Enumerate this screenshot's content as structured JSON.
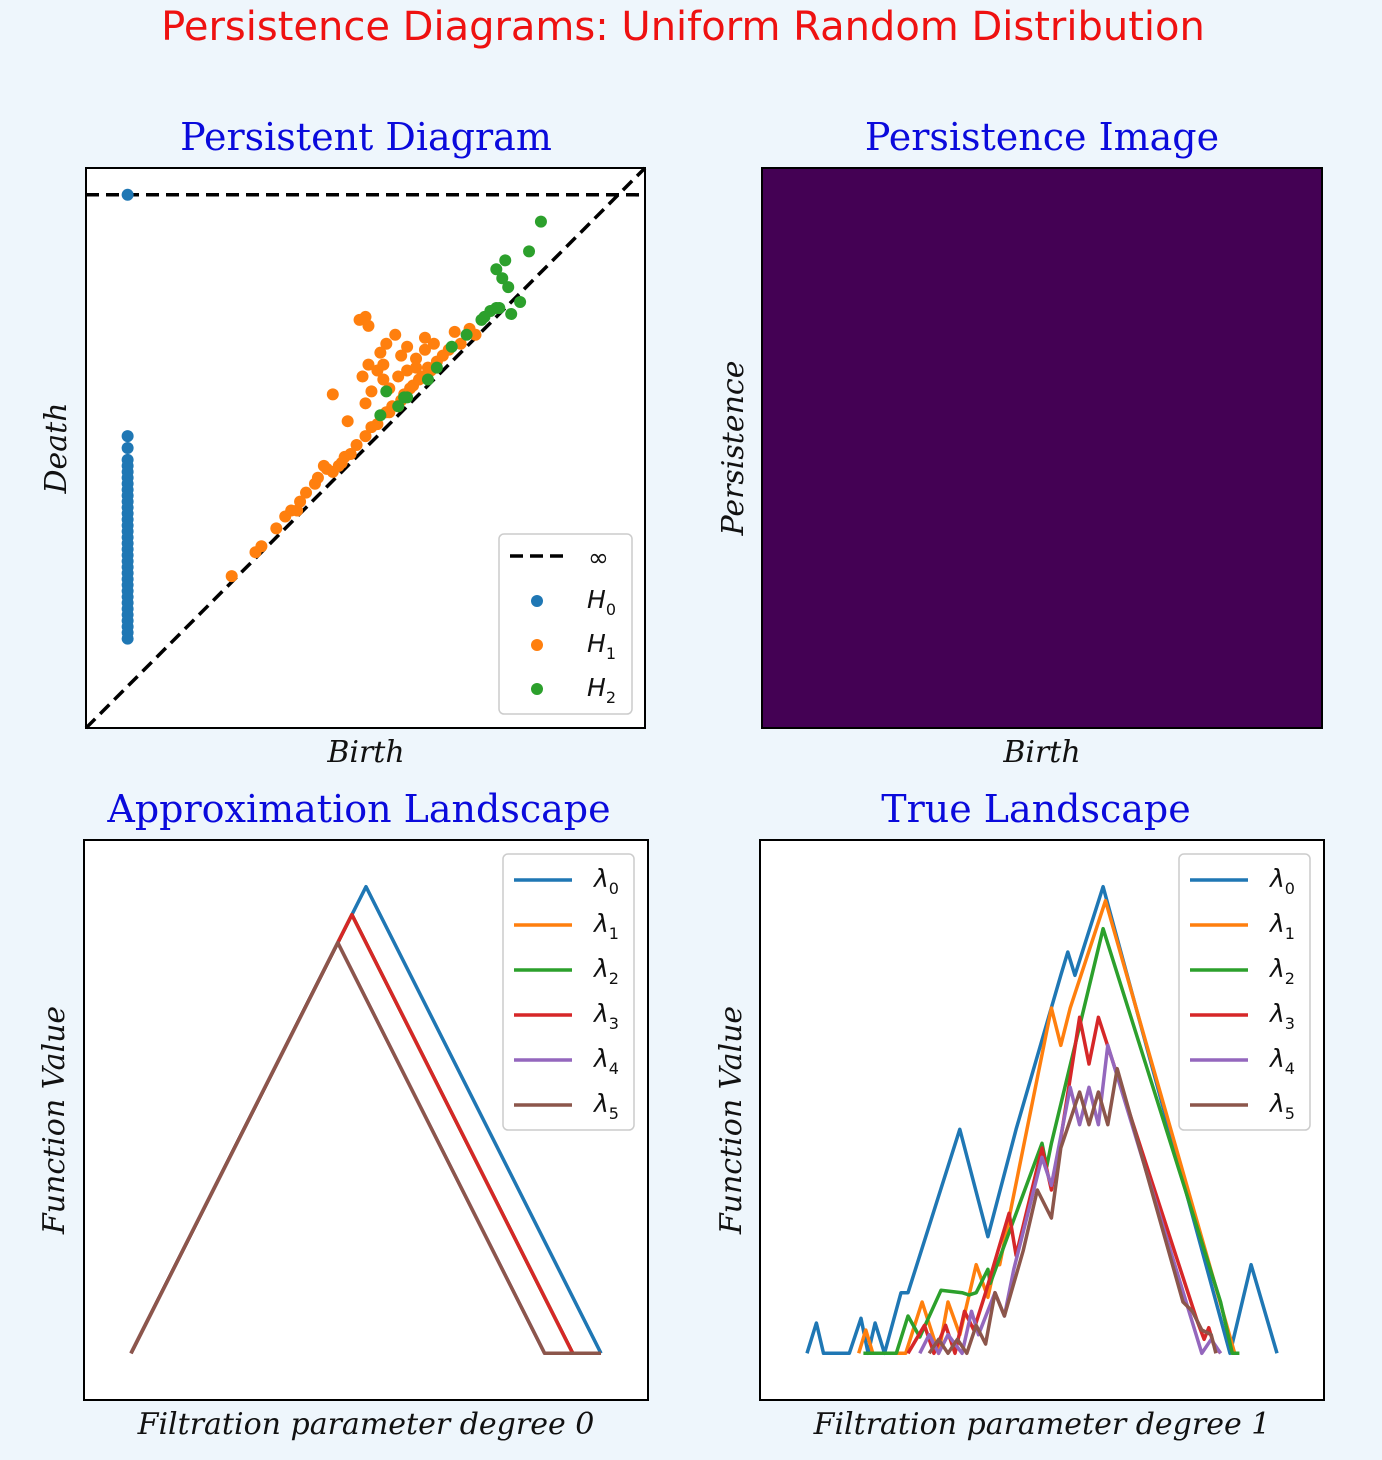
{
  "suptitle": "Persistence Diagrams:  Uniform Random Distribution",
  "chart_data": [
    {
      "type": "scatter",
      "title": "Persistent Diagram",
      "xlabel": "Birth",
      "ylabel": "Death",
      "xlim": [
        -0.08,
        1.8
      ],
      "ylim": [
        -0.08,
        1.8
      ],
      "infinity_line": {
        "label": "∞",
        "y": 1.71,
        "color": "#000000",
        "style": "dashed"
      },
      "diagonal": {
        "color": "#000000",
        "style": "dashed"
      },
      "legend_position": "lower-right",
      "series": [
        {
          "name": "H",
          "subscript": "0",
          "color": "#1f77b4",
          "points": [
            [
              0.06,
              1.71
            ],
            [
              0.06,
              0.9
            ],
            [
              0.06,
              0.86
            ],
            [
              0.06,
              0.82
            ],
            [
              0.06,
              0.8
            ],
            [
              0.06,
              0.78
            ],
            [
              0.06,
              0.76
            ],
            [
              0.06,
              0.74
            ],
            [
              0.06,
              0.72
            ],
            [
              0.06,
              0.7
            ],
            [
              0.06,
              0.68
            ],
            [
              0.06,
              0.66
            ],
            [
              0.06,
              0.64
            ],
            [
              0.06,
              0.62
            ],
            [
              0.06,
              0.6
            ],
            [
              0.06,
              0.58
            ],
            [
              0.06,
              0.56
            ],
            [
              0.06,
              0.54
            ],
            [
              0.06,
              0.52
            ],
            [
              0.06,
              0.5
            ],
            [
              0.06,
              0.48
            ],
            [
              0.06,
              0.46
            ],
            [
              0.06,
              0.44
            ],
            [
              0.06,
              0.42
            ],
            [
              0.06,
              0.4
            ],
            [
              0.06,
              0.38
            ],
            [
              0.06,
              0.36
            ],
            [
              0.06,
              0.34
            ],
            [
              0.06,
              0.32
            ],
            [
              0.06,
              0.3
            ],
            [
              0.06,
              0.28
            ],
            [
              0.06,
              0.26
            ],
            [
              0.06,
              0.24
            ],
            [
              0.06,
              0.22
            ]
          ]
        },
        {
          "name": "H",
          "subscript": "1",
          "color": "#ff7f0e",
          "points": [
            [
              0.41,
              0.43
            ],
            [
              0.49,
              0.51
            ],
            [
              0.51,
              0.53
            ],
            [
              0.56,
              0.59
            ],
            [
              0.59,
              0.63
            ],
            [
              0.61,
              0.65
            ],
            [
              0.63,
              0.65
            ],
            [
              0.64,
              0.68
            ],
            [
              0.66,
              0.71
            ],
            [
              0.69,
              0.74
            ],
            [
              0.72,
              0.8
            ],
            [
              0.7,
              0.76
            ],
            [
              0.73,
              0.79
            ],
            [
              0.75,
              0.78
            ],
            [
              0.77,
              0.8
            ],
            [
              0.79,
              0.83
            ],
            [
              0.81,
              0.84
            ],
            [
              0.78,
              0.81
            ],
            [
              0.83,
              0.87
            ],
            [
              0.86,
              0.9
            ],
            [
              0.88,
              0.93
            ],
            [
              0.9,
              0.94
            ],
            [
              0.93,
              0.98
            ],
            [
              0.95,
              1.0
            ],
            [
              0.97,
              1.0
            ],
            [
              0.99,
              1.04
            ],
            [
              1.02,
              1.07
            ],
            [
              1.04,
              1.09
            ],
            [
              1.07,
              1.13
            ],
            [
              1.1,
              1.15
            ],
            [
              1.14,
              1.19
            ],
            [
              1.18,
              1.21
            ],
            [
              0.86,
              1.01
            ],
            [
              0.88,
              1.05
            ],
            [
              0.85,
              1.1
            ],
            [
              0.87,
              1.14
            ],
            [
              0.91,
              1.18
            ],
            [
              0.93,
              1.21
            ],
            [
              0.96,
              1.24
            ],
            [
              1.0,
              1.2
            ],
            [
              1.03,
              1.16
            ],
            [
              1.06,
              1.19
            ],
            [
              1.09,
              1.21
            ],
            [
              0.84,
              1.29
            ],
            [
              0.86,
              1.3
            ],
            [
              0.87,
              1.27
            ],
            [
              0.9,
              1.12
            ],
            [
              0.92,
              1.09
            ],
            [
              0.94,
              1.06
            ],
            [
              0.97,
              1.1
            ],
            [
              1.0,
              1.12
            ],
            [
              1.03,
              1.13
            ],
            [
              1.06,
              1.23
            ],
            [
              0.94,
              0.98
            ],
            [
              0.98,
              1.02
            ],
            [
              1.01,
              1.06
            ],
            [
              1.05,
              1.1
            ],
            [
              1.08,
              1.12
            ],
            [
              1.12,
              1.17
            ],
            [
              0.8,
              0.95
            ],
            [
              1.21,
              1.26
            ],
            [
              1.23,
              1.24
            ],
            [
              1.16,
              1.25
            ],
            [
              0.75,
              1.04
            ],
            [
              0.98,
              1.17
            ],
            [
              0.92,
              1.14
            ]
          ]
        },
        {
          "name": "H",
          "subscript": "2",
          "color": "#2ca02c",
          "points": [
            [
              1.45,
              1.62
            ],
            [
              1.41,
              1.52
            ],
            [
              1.33,
              1.49
            ],
            [
              1.3,
              1.46
            ],
            [
              1.32,
              1.43
            ],
            [
              1.34,
              1.4
            ],
            [
              1.3,
              1.33
            ],
            [
              1.28,
              1.32
            ],
            [
              1.25,
              1.29
            ],
            [
              1.2,
              1.24
            ],
            [
              1.15,
              1.2
            ],
            [
              1.26,
              1.3
            ],
            [
              1.31,
              1.33
            ],
            [
              1.35,
              1.31
            ],
            [
              1.38,
              1.35
            ],
            [
              1.1,
              1.13
            ],
            [
              0.99,
              1.03
            ],
            [
              0.93,
              1.05
            ],
            [
              0.91,
              0.97
            ],
            [
              0.97,
              1.0
            ],
            [
              1.07,
              1.09
            ],
            [
              1.0,
              1.03
            ]
          ]
        }
      ]
    },
    {
      "type": "heatmap",
      "title": "Persistence Image",
      "xlabel": "Birth",
      "ylabel": "Persistence",
      "fill_color": "#440154"
    },
    {
      "type": "line",
      "title": "Approximation Landscape",
      "xlabel": "Filtration parameter degree  0",
      "ylabel": "Function Value",
      "xlim": [
        -0.1,
        1.1
      ],
      "ylim": [
        -0.1,
        1.1
      ],
      "series": [
        {
          "name": "λ",
          "subscript": "0",
          "color": "#1f77b4",
          "x": [
            0,
            0.5,
            1.0
          ],
          "y": [
            0,
            1.0,
            0
          ]
        },
        {
          "name": "λ",
          "subscript": "1",
          "color": "#ff7f0e",
          "x": [
            0,
            0.47,
            0.94,
            1.0
          ],
          "y": [
            0,
            0.94,
            0,
            0
          ]
        },
        {
          "name": "λ",
          "subscript": "2",
          "color": "#2ca02c",
          "x": [
            0,
            0.47,
            0.94,
            1.0
          ],
          "y": [
            0,
            0.94,
            0,
            0
          ]
        },
        {
          "name": "λ",
          "subscript": "3",
          "color": "#d62728",
          "x": [
            0,
            0.47,
            0.94,
            1.0
          ],
          "y": [
            0,
            0.94,
            0,
            0
          ]
        },
        {
          "name": "λ",
          "subscript": "4",
          "color": "#9467bd",
          "x": [
            0,
            0.44,
            0.88,
            1.0
          ],
          "y": [
            0,
            0.88,
            0,
            0
          ]
        },
        {
          "name": "λ",
          "subscript": "5",
          "color": "#8c564b",
          "x": [
            0,
            0.44,
            0.88,
            1.0
          ],
          "y": [
            0,
            0.88,
            0,
            0
          ]
        }
      ]
    },
    {
      "type": "line",
      "title": "True Landscape",
      "xlabel": "Filtration parameter degree  1",
      "ylabel": "Function Value",
      "xlim": [
        -0.1,
        1.1
      ],
      "ylim": [
        -0.1,
        1.1
      ],
      "series": [
        {
          "name": "λ",
          "subscript": "0",
          "color": "#1f77b4",
          "x": [
            0,
            0.02,
            0.035,
            0.09,
            0.115,
            0.13,
            0.145,
            0.165,
            0.2,
            0.215,
            0.325,
            0.385,
            0.445,
            0.54,
            0.555,
            0.57,
            0.63,
            0.9,
            0.945,
            1.0
          ],
          "y": [
            0,
            0.065,
            0,
            0,
            0.075,
            0,
            0.065,
            0,
            0.13,
            0.13,
            0.48,
            0.25,
            0.48,
            0.81,
            0.86,
            0.81,
            1.0,
            0,
            0.19,
            0
          ]
        },
        {
          "name": "λ",
          "subscript": "1",
          "color": "#ff7f0e",
          "x": [
            0.11,
            0.125,
            0.14,
            0.21,
            0.245,
            0.28,
            0.3,
            0.325,
            0.36,
            0.385,
            0.4,
            0.41,
            0.52,
            0.54,
            0.56,
            0.635,
            0.91,
            0.915
          ],
          "y": [
            0,
            0.05,
            0,
            0,
            0.11,
            0,
            0.11,
            0.04,
            0.19,
            0.12,
            0.19,
            0.19,
            0.74,
            0.66,
            0.74,
            0.97,
            0,
            0
          ]
        },
        {
          "name": "λ",
          "subscript": "2",
          "color": "#2ca02c",
          "x": [
            0.12,
            0.19,
            0.215,
            0.24,
            0.285,
            0.33,
            0.345,
            0.36,
            0.385,
            0.39,
            0.5,
            0.51,
            0.52,
            0.63,
            0.88,
            0.905,
            0.92
          ],
          "y": [
            0,
            0,
            0.08,
            0.035,
            0.135,
            0.13,
            0.125,
            0.13,
            0.18,
            0.15,
            0.45,
            0.4,
            0.45,
            0.91,
            0.11,
            0,
            0
          ]
        },
        {
          "name": "λ",
          "subscript": "3",
          "color": "#d62728",
          "x": [
            0.215,
            0.25,
            0.27,
            0.295,
            0.315,
            0.335,
            0.355,
            0.38,
            0.43,
            0.445,
            0.5,
            0.52,
            0.54,
            0.58,
            0.6,
            0.62,
            0.83,
            0.845,
            0.855,
            0.865,
            0.88
          ],
          "y": [
            0,
            0.06,
            0,
            0.06,
            0,
            0.09,
            0.05,
            0.13,
            0.3,
            0.21,
            0.44,
            0.35,
            0.46,
            0.72,
            0.62,
            0.72,
            0.07,
            0.03,
            0.055,
            0.02,
            0
          ]
        },
        {
          "name": "λ",
          "subscript": "4",
          "color": "#9467bd",
          "x": [
            0.24,
            0.26,
            0.28,
            0.3,
            0.33,
            0.35,
            0.365,
            0.4,
            0.42,
            0.44,
            0.5,
            0.52,
            0.56,
            0.58,
            0.6,
            0.62,
            0.64,
            0.84,
            0.86,
            0.88
          ],
          "y": [
            0,
            0.04,
            0,
            0.04,
            0,
            0.09,
            0.04,
            0.13,
            0.08,
            0.18,
            0.42,
            0.36,
            0.57,
            0.49,
            0.57,
            0.49,
            0.66,
            0,
            0.03,
            0
          ]
        },
        {
          "name": "λ",
          "subscript": "5",
          "color": "#8c564b",
          "x": [
            0.26,
            0.28,
            0.3,
            0.32,
            0.34,
            0.36,
            0.38,
            0.4,
            0.42,
            0.46,
            0.49,
            0.52,
            0.54,
            0.58,
            0.6,
            0.62,
            0.64,
            0.66,
            0.8,
            0.82,
            0.84,
            0.86,
            0.87
          ],
          "y": [
            0,
            0.03,
            0,
            0.03,
            0,
            0.06,
            0.02,
            0.13,
            0.08,
            0.22,
            0.35,
            0.29,
            0.44,
            0.56,
            0.49,
            0.56,
            0.49,
            0.61,
            0.11,
            0.09,
            0.05,
            0.04,
            0
          ]
        }
      ]
    }
  ]
}
